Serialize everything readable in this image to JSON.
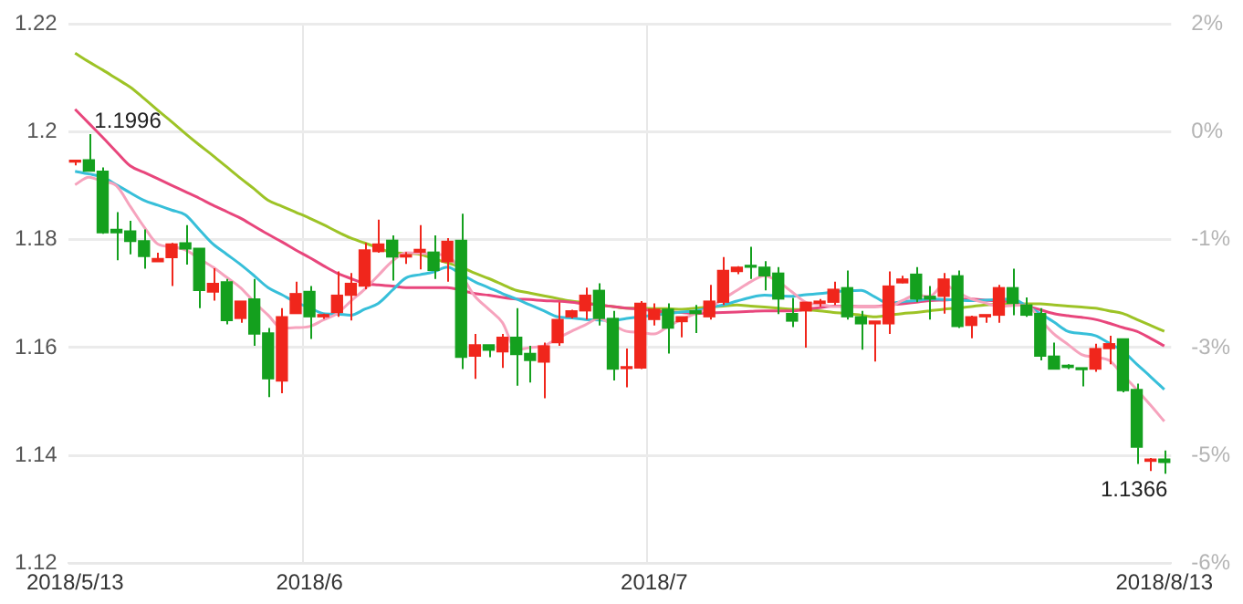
{
  "chart_data": {
    "type": "candlestick",
    "categories": [
      "2018/5/13",
      null,
      null,
      null,
      null,
      null,
      null,
      null,
      null,
      null,
      null,
      null,
      null,
      null,
      null,
      null,
      null,
      "2018/6",
      null,
      null,
      null,
      null,
      null,
      null,
      null,
      null,
      null,
      null,
      null,
      null,
      null,
      null,
      null,
      null,
      null,
      null,
      null,
      null,
      null,
      null,
      null,
      null,
      "2018/7",
      null,
      null,
      null,
      null,
      null,
      null,
      null,
      null,
      null,
      null,
      null,
      null,
      null,
      null,
      null,
      null,
      null,
      null,
      null,
      null,
      null,
      null,
      null,
      null,
      null,
      null,
      null,
      null,
      null,
      null,
      null,
      null,
      null,
      null,
      null,
      null,
      "2018/8/13"
    ],
    "series": [
      {
        "ohlc": [
          [
            1.1944,
            1.1948,
            1.1938,
            1.1946
          ],
          [
            1.1948,
            1.1996,
            1.1927,
            1.1927
          ],
          [
            1.1927,
            1.1934,
            1.1811,
            1.1813
          ],
          [
            1.1819,
            1.1851,
            1.1762,
            1.1813
          ],
          [
            1.1816,
            1.1835,
            1.1773,
            1.1797
          ],
          [
            1.1798,
            1.1819,
            1.1746,
            1.1769
          ],
          [
            1.1759,
            1.1776,
            1.1759,
            1.1765
          ],
          [
            1.1767,
            1.1794,
            1.1714,
            1.1792
          ],
          [
            1.1794,
            1.1827,
            1.1754,
            1.1783
          ],
          [
            1.1784,
            1.1784,
            1.1673,
            1.1706
          ],
          [
            1.1703,
            1.1747,
            1.1687,
            1.1719
          ],
          [
            1.1722,
            1.1727,
            1.1643,
            1.165
          ],
          [
            1.1654,
            1.1686,
            1.1646,
            1.1686
          ],
          [
            1.169,
            1.1727,
            1.1603,
            1.1625
          ],
          [
            1.1627,
            1.1636,
            1.1508,
            1.1542
          ],
          [
            1.1538,
            1.1673,
            1.1515,
            1.1657
          ],
          [
            1.1663,
            1.1722,
            1.1663,
            1.17
          ],
          [
            1.1704,
            1.1714,
            1.1616,
            1.1657
          ],
          [
            1.1657,
            1.1663,
            1.1653,
            1.1661
          ],
          [
            1.1665,
            1.1741,
            1.1657,
            1.1697
          ],
          [
            1.1697,
            1.1738,
            1.165,
            1.1719
          ],
          [
            1.1714,
            1.1794,
            1.1708,
            1.1781
          ],
          [
            1.1778,
            1.1837,
            1.1776,
            1.1792
          ],
          [
            1.1799,
            1.1808,
            1.1724,
            1.1768
          ],
          [
            1.1768,
            1.1777,
            1.1755,
            1.1772
          ],
          [
            1.1777,
            1.1827,
            1.1745,
            1.1782
          ],
          [
            1.1777,
            1.1808,
            1.1727,
            1.1743
          ],
          [
            1.1759,
            1.1803,
            1.1722,
            1.1797
          ],
          [
            1.1799,
            1.1848,
            1.156,
            1.1582
          ],
          [
            1.1584,
            1.1625,
            1.1542,
            1.1605
          ],
          [
            1.1605,
            1.1605,
            1.1582,
            1.1595
          ],
          [
            1.1592,
            1.1625,
            1.1562,
            1.1619
          ],
          [
            1.1619,
            1.1673,
            1.1529,
            1.1587
          ],
          [
            1.1589,
            1.1603,
            1.1535,
            1.1576
          ],
          [
            1.1573,
            1.1609,
            1.1506,
            1.1603
          ],
          [
            1.1609,
            1.1684,
            1.1603,
            1.1652
          ],
          [
            1.1657,
            1.167,
            1.1654,
            1.1668
          ],
          [
            1.1668,
            1.1711,
            1.1652,
            1.1697
          ],
          [
            1.1706,
            1.1719,
            1.1641,
            1.1654
          ],
          [
            1.1654,
            1.1668,
            1.1539,
            1.156
          ],
          [
            1.1561,
            1.1598,
            1.1526,
            1.1562
          ],
          [
            1.1562,
            1.1686,
            1.156,
            1.1682
          ],
          [
            1.1652,
            1.1682,
            1.1641,
            1.1671
          ],
          [
            1.1671,
            1.1682,
            1.1589,
            1.1636
          ],
          [
            1.1648,
            1.1657,
            1.1619,
            1.1657
          ],
          [
            1.1668,
            1.1679,
            1.1627,
            1.1663
          ],
          [
            1.1657,
            1.1716,
            1.1652,
            1.1686
          ],
          [
            1.1684,
            1.1768,
            1.1679,
            1.1743
          ],
          [
            1.1741,
            1.1751,
            1.1736,
            1.1749
          ],
          [
            1.1751,
            1.1787,
            1.1727,
            1.1749
          ],
          [
            1.1749,
            1.176,
            1.1706,
            1.1733
          ],
          [
            1.1738,
            1.1749,
            1.1662,
            1.169
          ],
          [
            1.1663,
            1.1692,
            1.1638,
            1.1649
          ],
          [
            1.1668,
            1.1684,
            1.16,
            1.1684
          ],
          [
            1.1682,
            1.169,
            1.1676,
            1.1686
          ],
          [
            1.1684,
            1.1722,
            1.1679,
            1.1708
          ],
          [
            1.1711,
            1.1743,
            1.1652,
            1.1657
          ],
          [
            1.1657,
            1.1668,
            1.1596,
            1.1644
          ],
          [
            1.1644,
            1.1649,
            1.1574,
            1.1649
          ],
          [
            1.1644,
            1.1741,
            1.1625,
            1.1714
          ],
          [
            1.172,
            1.1733,
            1.1719,
            1.1727
          ],
          [
            1.1736,
            1.1749,
            1.1684,
            1.169
          ],
          [
            1.1695,
            1.1714,
            1.1652,
            1.169
          ],
          [
            1.1695,
            1.1738,
            1.1663,
            1.1727
          ],
          [
            1.1733,
            1.1743,
            1.1636,
            1.1639
          ],
          [
            1.1641,
            1.1659,
            1.1617,
            1.1657
          ],
          [
            1.1657,
            1.1661,
            1.1646,
            1.1661
          ],
          [
            1.166,
            1.1716,
            1.1646,
            1.1711
          ],
          [
            1.1711,
            1.1746,
            1.166,
            1.1682
          ],
          [
            1.1679,
            1.1693,
            1.1657,
            1.166
          ],
          [
            1.1663,
            1.1673,
            1.1576,
            1.1584
          ],
          [
            1.1584,
            1.1609,
            1.156,
            1.156
          ],
          [
            1.1567,
            1.1569,
            1.156,
            1.1563
          ],
          [
            1.1562,
            1.1562,
            1.1528,
            1.1559
          ],
          [
            1.156,
            1.1607,
            1.1555,
            1.1598
          ],
          [
            1.1598,
            1.1622,
            1.1569,
            1.1607
          ],
          [
            1.1616,
            1.1616,
            1.1517,
            1.152
          ],
          [
            1.1522,
            1.1533,
            1.1384,
            1.1415
          ],
          [
            1.1389,
            1.1395,
            1.1371,
            1.1393
          ],
          [
            1.1393,
            1.1409,
            1.1366,
            1.1387
          ]
        ],
        "colors": [
          "#f0261c",
          "#14a01e",
          "#14a01e",
          "#14a01e",
          "#14a01e",
          "#14a01e",
          "#f0261c",
          "#f0261c",
          "#14a01e",
          "#14a01e",
          "#f0261c",
          "#14a01e",
          "#f0261c",
          "#14a01e",
          "#14a01e",
          "#f0261c",
          "#f0261c",
          "#14a01e",
          "#f0261c",
          "#f0261c",
          "#f0261c",
          "#f0261c",
          "#f0261c",
          "#14a01e",
          "#f0261c",
          "#f0261c",
          "#14a01e",
          "#f0261c",
          "#14a01e",
          "#f0261c",
          "#14a01e",
          "#f0261c",
          "#14a01e",
          "#14a01e",
          "#f0261c",
          "#f0261c",
          "#f0261c",
          "#f0261c",
          "#14a01e",
          "#14a01e",
          "#f0261c",
          "#f0261c",
          "#f0261c",
          "#14a01e",
          "#f0261c",
          "#14a01e",
          "#f0261c",
          "#f0261c",
          "#f0261c",
          "#14a01e",
          "#14a01e",
          "#14a01e",
          "#14a01e",
          "#f0261c",
          "#f0261c",
          "#f0261c",
          "#14a01e",
          "#14a01e",
          "#f0261c",
          "#f0261c",
          "#f0261c",
          "#14a01e",
          "#14a01e",
          "#f0261c",
          "#14a01e",
          "#f0261c",
          "#f0261c",
          "#f0261c",
          "#14a01e",
          "#14a01e",
          "#14a01e",
          "#14a01e",
          "#14a01e",
          "#14a01e",
          "#f0261c",
          "#f0261c",
          "#14a01e",
          "#14a01e",
          "#f0261c",
          "#14a01e"
        ]
      },
      {
        "type": "line",
        "color": "#f6a3bd",
        "values": [
          1.1902,
          1.1916,
          1.1908,
          1.19,
          1.1862,
          1.1824,
          1.1792,
          1.1787,
          1.1781,
          1.1765,
          1.1749,
          1.173,
          1.1711,
          1.1684,
          1.166,
          1.1636,
          1.1637,
          1.1639,
          1.1651,
          1.1663,
          1.1686,
          1.1708,
          1.1734,
          1.176,
          1.1776,
          1.1775,
          1.1773,
          1.177,
          null,
          1.1695,
          1.1671,
          1.1646,
          1.1596,
          1.16,
          1.1603,
          1.1617,
          1.163,
          1.1642,
          1.1654,
          1.1642,
          1.163,
          1.1628,
          1.1625,
          1.1639,
          1.1652,
          1.1663,
          1.1673,
          1.169,
          1.1706,
          1.1722,
          1.1733,
          1.1722,
          1.1703,
          1.1684,
          1.168,
          1.1676,
          1.1676,
          1.1676,
          1.1676,
          1.1676,
          1.1687,
          1.1697,
          1.1695,
          1.1716,
          1.1703,
          1.169,
          1.1683,
          1.1676,
          1.1678,
          1.1679,
          1.1652,
          1.1625,
          1.1606,
          1.1587,
          1.1582,
          1.1576,
          1.1549,
          1.1522,
          1.1493,
          1.1463
        ]
      },
      {
        "type": "line",
        "color": "#37bfd9",
        "values": [
          1.1927,
          1.1922,
          1.1916,
          1.1902,
          1.1887,
          1.1873,
          1.1864,
          1.1855,
          1.1846,
          1.1819,
          1.1792,
          1.1773,
          1.1754,
          1.1733,
          1.1711,
          1.1698,
          1.1684,
          1.1674,
          1.1663,
          1.1662,
          1.166,
          1.1671,
          1.1682,
          1.1706,
          1.1729,
          1.1735,
          1.174,
          1.1749,
          1.1736,
          1.1722,
          1.1711,
          1.17,
          1.169,
          1.1679,
          1.1668,
          1.1657,
          1.1655,
          1.1652,
          1.1651,
          1.165,
          1.1654,
          1.1657,
          1.166,
          1.1663,
          1.1666,
          1.1668,
          1.1674,
          1.1679,
          1.1686,
          1.1693,
          1.1697,
          1.1696,
          1.1695,
          1.1698,
          1.17,
          1.1703,
          1.1705,
          1.1706,
          1.1694,
          1.1682,
          1.1685,
          1.1687,
          1.169,
          1.1689,
          1.1688,
          1.1687,
          1.1688,
          1.1689,
          1.169,
          1.1677,
          1.1663,
          1.1647,
          1.163,
          1.1626,
          1.1622,
          1.1608,
          1.1593,
          1.1569,
          1.1546,
          1.1522
        ]
      },
      {
        "type": "line",
        "color": "#e8467c",
        "values": [
          1.2042,
          1.2016,
          1.199,
          1.1963,
          1.1937,
          1.1925,
          1.1913,
          1.1901,
          1.1889,
          1.1877,
          1.1864,
          1.1852,
          1.184,
          1.1825,
          1.181,
          1.1796,
          1.1781,
          1.1767,
          1.1752,
          1.1738,
          1.1728,
          1.1719,
          1.1716,
          1.1714,
          1.1711,
          1.1711,
          1.1711,
          1.1711,
          1.1706,
          1.17,
          1.1697,
          1.1693,
          1.169,
          1.1689,
          1.1687,
          1.1686,
          1.1684,
          1.1681,
          1.1679,
          1.1676,
          1.1673,
          1.1671,
          1.1668,
          1.1666,
          1.1665,
          1.1663,
          1.1664,
          1.1665,
          1.1666,
          1.1667,
          1.1668,
          1.1668,
          1.1668,
          1.1671,
          1.1674,
          1.1677,
          1.1677,
          1.1676,
          1.1676,
          1.1679,
          1.1681,
          1.1684,
          1.1687,
          1.1688,
          1.1689,
          1.169,
          1.1688,
          1.1686,
          1.1684,
          1.1677,
          1.167,
          1.1663,
          1.1659,
          1.1656,
          1.1652,
          1.1645,
          1.1637,
          1.163,
          1.1617,
          1.1603
        ]
      },
      {
        "type": "line",
        "color": "#9dc326",
        "values": [
          1.2146,
          1.213,
          1.2115,
          1.2099,
          1.2083,
          1.2062,
          1.204,
          1.2019,
          1.1997,
          1.1976,
          1.1956,
          1.1935,
          1.1914,
          1.1894,
          1.1873,
          1.1862,
          1.1851,
          1.184,
          1.1828,
          1.1815,
          1.1803,
          1.1794,
          1.1785,
          1.1776,
          1.1775,
          1.1773,
          1.1765,
          1.1757,
          1.1749,
          1.1738,
          1.1728,
          1.1717,
          1.1706,
          1.1701,
          1.1696,
          1.1691,
          1.1686,
          1.1683,
          1.1679,
          1.1676,
          1.1673,
          1.1673,
          1.1672,
          1.1672,
          1.1671,
          1.1673,
          1.1675,
          1.1677,
          1.1679,
          1.1677,
          1.1675,
          1.1673,
          1.1671,
          1.167,
          1.1668,
          1.1665,
          1.1663,
          1.166,
          1.1657,
          1.166,
          1.1663,
          1.1665,
          1.1668,
          1.1671,
          1.1673,
          1.1676,
          1.1679,
          1.168,
          1.168,
          1.1681,
          1.1681,
          1.1679,
          1.1677,
          1.1675,
          1.1673,
          1.1668,
          1.1663,
          1.1652,
          1.1641,
          1.163
        ]
      }
    ],
    "ylim": [
      1.12,
      1.22
    ],
    "yticks": [
      1.12,
      1.14,
      1.16,
      1.18,
      1.2,
      1.22
    ],
    "y2lim": [
      -6.39,
      1.96
    ],
    "y2ticks": [
      {
        "value": -6.39,
        "label": "-6%"
      },
      {
        "value": -4.72,
        "label": "-5%"
      },
      {
        "value": -3.05,
        "label": "-3%"
      },
      {
        "value": -1.38,
        "label": "-1%"
      },
      {
        "value": 0.29,
        "label": "0%"
      },
      {
        "value": 1.96,
        "label": "2%"
      }
    ],
    "annotations": [
      "1.1996",
      "1.1366"
    ],
    "grid": true,
    "legend": false,
    "marker": "none",
    "line_style": "solid"
  }
}
